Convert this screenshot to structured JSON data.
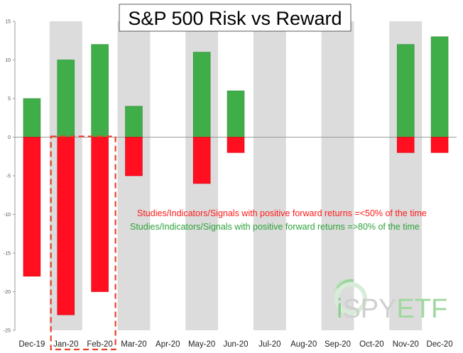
{
  "chart_data": {
    "type": "bar",
    "title": "S&P 500 Risk vs Reward",
    "categories": [
      "Dec-19",
      "Jan-20",
      "Feb-20",
      "Mar-20",
      "Apr-20",
      "May-20",
      "Jun-20",
      "Jul-20",
      "Aug-20",
      "Sep-20",
      "Oct-20",
      "Nov-20",
      "Dec-20"
    ],
    "series": [
      {
        "values": [
          5,
          10,
          12,
          4,
          0,
          11,
          6,
          0,
          0,
          0,
          0,
          12,
          13
        ],
        "color": "#3fae49"
      },
      {
        "values": [
          -18,
          -23,
          -20,
          -5,
          0,
          -6,
          -2,
          0,
          0,
          0,
          0,
          -2,
          -2
        ],
        "color": "#ff0f1f"
      }
    ],
    "ylim": [
      -25,
      15
    ],
    "yticks": [
      15,
      10,
      5,
      0,
      -5,
      -10,
      -15,
      -20,
      -25
    ],
    "shaded_categories": [
      "Jan-20",
      "Mar-20",
      "May-20",
      "Jul-20",
      "Sep-20",
      "Nov-20"
    ],
    "highlight_box_categories": [
      "Jan-20",
      "Feb-20"
    ],
    "shade_color": "#dcdcdc",
    "legend": [
      {
        "text": "Studies/Indicators/Signals with positive forward returns =<50% of the time",
        "color": "#ff1a1a"
      },
      {
        "text": "Studies/Indicators/Signals with positive forward returns =>80% of the time",
        "color": "#2ea33a"
      }
    ],
    "legend_position": "center-right",
    "watermark_text": "iSPYETF"
  }
}
